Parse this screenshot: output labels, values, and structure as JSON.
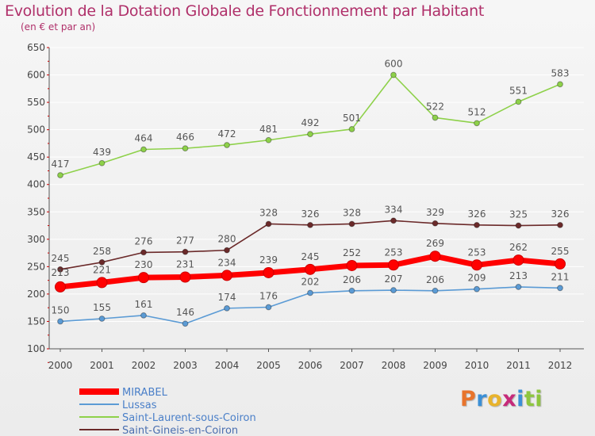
{
  "header": {
    "title": "Evolution de la Dotation Globale de Fonctionnement par Habitant",
    "subtitle": "(en € et par an)"
  },
  "colors": {
    "title": "#b0306a",
    "mirabel": "#ff0000",
    "lussas": "#5b9bd5",
    "saint_laurent": "#8ed14a",
    "saint_gineis": "#6b2a2a",
    "grid": "#ffffff",
    "axis": "#555555"
  },
  "logo": {
    "letters": [
      "P",
      "r",
      "o",
      "x",
      "i",
      "t",
      "i"
    ],
    "colors": [
      "#e8742c",
      "#3b8fd6",
      "#e8b32c",
      "#c62a7a",
      "#3b8fd6",
      "#8ec63f",
      "#8ec63f"
    ]
  },
  "chart_data": {
    "type": "line",
    "title": "Evolution de la Dotation Globale de Fonctionnement par Habitant",
    "subtitle": "(en € et par an)",
    "xlabel": "",
    "ylabel": "",
    "ylim": [
      100,
      650
    ],
    "yticks": [
      100,
      150,
      200,
      250,
      300,
      350,
      400,
      450,
      500,
      550,
      600,
      650
    ],
    "grid": true,
    "legend_position": "bottom-left",
    "x": [
      "2000",
      "2001",
      "2002",
      "2003",
      "2004",
      "2005",
      "2006",
      "2007",
      "2008",
      "2009",
      "2010",
      "2011",
      "2012"
    ],
    "series": [
      {
        "name": "MIRABEL",
        "color": "#ff0000",
        "values": [
          213,
          221,
          230,
          231,
          234,
          239,
          245,
          252,
          253,
          269,
          253,
          262,
          255
        ]
      },
      {
        "name": "Lussas",
        "color": "#5b9bd5",
        "values": [
          150,
          155,
          161,
          146,
          174,
          176,
          202,
          206,
          207,
          206,
          209,
          213,
          211
        ]
      },
      {
        "name": "Saint-Laurent-sous-Coiron",
        "color": "#8ed14a",
        "values": [
          417,
          439,
          464,
          466,
          472,
          481,
          492,
          501,
          600,
          522,
          512,
          551,
          583
        ]
      },
      {
        "name": "Saint-Gineis-en-Coiron",
        "color": "#6b2a2a",
        "values": [
          245,
          258,
          276,
          277,
          280,
          328,
          326,
          328,
          334,
          329,
          326,
          325,
          326
        ]
      }
    ]
  }
}
